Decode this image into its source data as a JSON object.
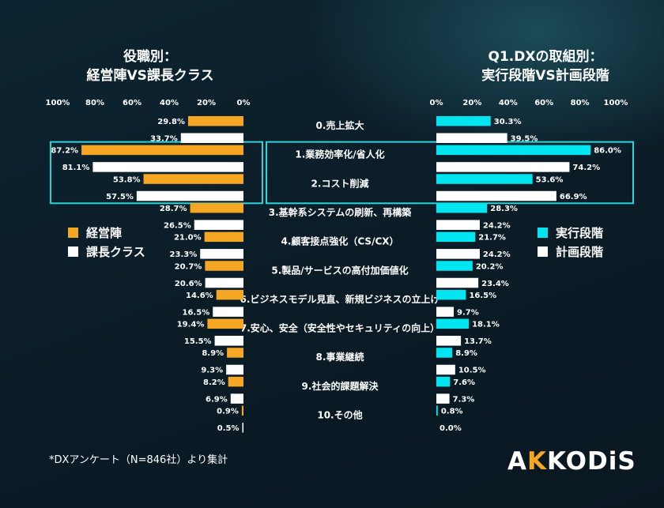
{
  "titles": {
    "left": [
      "役職別：",
      "経営陣VS課長クラス"
    ],
    "right": [
      "Q1.DXの取組別：",
      "実行段階VS計画段階"
    ]
  },
  "legend_left": [
    {
      "label": "経営陣",
      "color": "#f5a623"
    },
    {
      "label": "課長クラス",
      "color": "#ffffff"
    }
  ],
  "legend_right": [
    {
      "label": "実行段階",
      "color": "#00e5f0"
    },
    {
      "label": "計画段階",
      "color": "#ffffff"
    }
  ],
  "footnote": "*DXアンケート（N=846社）より集計",
  "logo": {
    "before": "A",
    "accent": "K",
    "after": "KODiS"
  },
  "colors": {
    "orange": "#f5a623",
    "cyan": "#00e5f0",
    "white": "#ffffff",
    "highlight": "#2ad4d8"
  },
  "chart_data": [
    {
      "type": "bar",
      "orientation": "horizontal-reversed",
      "xlim": [
        0,
        100
      ],
      "ticks": [
        "100%",
        "80%",
        "60%",
        "40%",
        "20%",
        "0%"
      ],
      "categories": [
        "0.売上拡大",
        "1.業務効率化/省人化",
        "2.コスト削減",
        "3.基幹系システムの刷新、再構築",
        "4.顧客接点強化（CS/CX）",
        "5.製品/サービスの高付加価値化",
        "6.ビジネスモデル見直、新規ビジネスの立上げ",
        "7.安心、安全（安全性やセキュリティの向上）",
        "8.事業継続",
        "9.社会的課題解決",
        "10.その他"
      ],
      "series": [
        {
          "name": "経営陣",
          "values": [
            29.8,
            87.2,
            53.8,
            28.7,
            21.0,
            20.7,
            14.6,
            19.4,
            8.9,
            8.2,
            0.9
          ]
        },
        {
          "name": "課長クラス",
          "values": [
            33.7,
            81.1,
            57.5,
            26.5,
            23.3,
            20.6,
            16.5,
            15.5,
            9.3,
            6.9,
            0.5
          ]
        }
      ]
    },
    {
      "type": "bar",
      "orientation": "horizontal",
      "xlim": [
        0,
        100
      ],
      "ticks": [
        "0%",
        "20%",
        "40%",
        "60%",
        "80%",
        "100%"
      ],
      "categories": [
        "0.売上拡大",
        "1.業務効率化/省人化",
        "2.コスト削減",
        "3.基幹系システムの刷新、再構築",
        "4.顧客接点強化（CS/CX）",
        "5.製品/サービスの高付加価値化",
        "6.ビジネスモデル見直、新規ビジネスの立上げ",
        "7.安心、安全（安全性やセキュリティの向上）",
        "8.事業継続",
        "9.社会的課題解決",
        "10.その他"
      ],
      "series": [
        {
          "name": "実行段階",
          "values": [
            30.3,
            86.0,
            53.6,
            28.3,
            21.7,
            20.2,
            16.5,
            18.1,
            8.9,
            7.6,
            0.8
          ]
        },
        {
          "name": "計画段階",
          "values": [
            39.5,
            74.2,
            66.9,
            24.2,
            24.2,
            23.4,
            9.7,
            13.7,
            10.5,
            7.3,
            0.0
          ]
        }
      ],
      "highlighted_categories": [
        "1.業務効率化/省人化",
        "2.コスト削減"
      ]
    }
  ]
}
